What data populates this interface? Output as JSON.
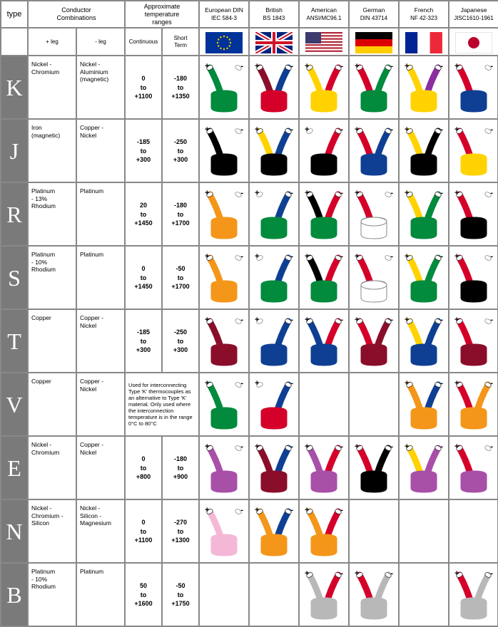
{
  "columns": {
    "type": "type",
    "conductor_header": "Conductor\nCombinations",
    "pos_leg": "+ leg",
    "neg_leg": "- leg",
    "temp_header": "Approximate\ntemperature\nranges",
    "continuous": "Continuous",
    "short_term": "Short\nTerm",
    "standards": [
      {
        "name": "European DIN",
        "code": "IEC 584-3",
        "flag": "eu"
      },
      {
        "name": "British",
        "code": "BS 1843",
        "flag": "uk"
      },
      {
        "name": "American",
        "code": "ANSI/MC96.1",
        "flag": "us"
      },
      {
        "name": "German",
        "code": "DIN 43714",
        "flag": "de"
      },
      {
        "name": "French",
        "code": "NF 42-323",
        "flag": "fr"
      },
      {
        "name": "Japanese",
        "code": "JISC1610-1961",
        "flag": "jp"
      }
    ]
  },
  "colors": {
    "type_bg": "#7a7a7a",
    "green": "#028a3d",
    "red": "#d4002a",
    "orange": "#f49619",
    "blue": "#0f3f93",
    "darkblue": "#0a1e5a",
    "black": "#000000",
    "white": "#ffffff",
    "yellow": "#ffd200",
    "brown": "#6b1a16",
    "maroon": "#8a0e2a",
    "purple": "#8a2fa0",
    "violet": "#a84fa8",
    "pink": "#f4b8d6",
    "grey": "#b8b8b8"
  },
  "rows": [
    {
      "type": "K",
      "pos": "Nickel -\nChromium",
      "neg": "Nickel -\nAluminium\n(magnetic)",
      "cont": [
        "0",
        "to",
        "+1100"
      ],
      "short": [
        "-180",
        "to",
        "+1350"
      ],
      "std": [
        {
          "sheath": "green",
          "pos": "green",
          "neg": "white"
        },
        {
          "sheath": "red",
          "pos": "maroon",
          "neg": "blue"
        },
        {
          "sheath": "yellow",
          "pos": "yellow",
          "neg": "red"
        },
        {
          "sheath": "green",
          "pos": "red",
          "neg": "green"
        },
        {
          "sheath": "yellow",
          "pos": "yellow",
          "neg": "purple"
        },
        {
          "sheath": "blue",
          "pos": "red",
          "neg": "white"
        }
      ]
    },
    {
      "type": "J",
      "pos": "Iron\n(magnetic)",
      "neg": "Copper -\nNickel",
      "cont": [
        "-185",
        "to",
        "+300"
      ],
      "short": [
        "-250",
        "to",
        "+300"
      ],
      "std": [
        {
          "sheath": "black",
          "pos": "black",
          "neg": "white"
        },
        {
          "sheath": "black",
          "pos": "yellow",
          "neg": "blue"
        },
        {
          "sheath": "black",
          "pos": "white",
          "neg": "red"
        },
        {
          "sheath": "blue",
          "pos": "red",
          "neg": "blue"
        },
        {
          "sheath": "black",
          "pos": "yellow",
          "neg": "black"
        },
        {
          "sheath": "yellow",
          "pos": "red",
          "neg": "white"
        }
      ]
    },
    {
      "type": "R",
      "pos": "Platinum\n- 13%\nRhodium",
      "neg": "Platinum",
      "cont": [
        "20",
        "to",
        "+1450"
      ],
      "short": [
        "-180",
        "to",
        "+1700"
      ],
      "std": [
        {
          "sheath": "orange",
          "pos": "orange",
          "neg": "white"
        },
        {
          "sheath": "green",
          "pos": "white",
          "neg": "blue"
        },
        {
          "sheath": "green",
          "pos": "black",
          "neg": "red"
        },
        {
          "sheath": "white",
          "pos": "red",
          "neg": "white"
        },
        {
          "sheath": "green",
          "pos": "yellow",
          "neg": "green"
        },
        {
          "sheath": "black",
          "pos": "red",
          "neg": "white"
        }
      ]
    },
    {
      "type": "S",
      "pos": "Platinum\n- 10%\nRhodium",
      "neg": "Platinum",
      "cont": [
        "0",
        "to",
        "+1450"
      ],
      "short": [
        "-50",
        "to",
        "+1700"
      ],
      "std": [
        {
          "sheath": "orange",
          "pos": "orange",
          "neg": "white"
        },
        {
          "sheath": "green",
          "pos": "white",
          "neg": "blue"
        },
        {
          "sheath": "green",
          "pos": "black",
          "neg": "red"
        },
        {
          "sheath": "white",
          "pos": "red",
          "neg": "white"
        },
        {
          "sheath": "green",
          "pos": "yellow",
          "neg": "green"
        },
        {
          "sheath": "black",
          "pos": "red",
          "neg": "white"
        }
      ]
    },
    {
      "type": "T",
      "pos": "Copper",
      "neg": "Copper -\nNickel",
      "cont": [
        "-185",
        "to",
        "+300"
      ],
      "short": [
        "-250",
        "to",
        "+300"
      ],
      "std": [
        {
          "sheath": "maroon",
          "pos": "maroon",
          "neg": "white"
        },
        {
          "sheath": "blue",
          "pos": "white",
          "neg": "blue"
        },
        {
          "sheath": "blue",
          "pos": "blue",
          "neg": "red"
        },
        {
          "sheath": "maroon",
          "pos": "red",
          "neg": "maroon"
        },
        {
          "sheath": "blue",
          "pos": "yellow",
          "neg": "blue"
        },
        {
          "sheath": "maroon",
          "pos": "red",
          "neg": "white"
        }
      ]
    },
    {
      "type": "V",
      "pos": "Copper",
      "neg": "Copper -\nNickel",
      "note": "Used for interconnecting Type 'K' thermocouples as an alternative to Type 'K' material. Only used where the interconnection temperature is in the range 0°C to 80°C",
      "std": [
        {
          "sheath": "green",
          "pos": "green",
          "neg": "white"
        },
        {
          "sheath": "red",
          "pos": "white",
          "neg": "blue"
        },
        null,
        null,
        {
          "sheath": "orange",
          "pos": "orange",
          "neg": "blue"
        },
        {
          "sheath": "orange",
          "pos": "red",
          "neg": "orange"
        }
      ]
    },
    {
      "type": "E",
      "pos": "Nickel -\nChromium",
      "neg": "Copper -\nNickel",
      "cont": [
        "0",
        "to",
        "+800"
      ],
      "short": [
        "-180",
        "to",
        "+900"
      ],
      "std": [
        {
          "sheath": "violet",
          "pos": "violet",
          "neg": "white"
        },
        {
          "sheath": "maroon",
          "pos": "maroon",
          "neg": "blue"
        },
        {
          "sheath": "violet",
          "pos": "violet",
          "neg": "red"
        },
        {
          "sheath": "black",
          "pos": "red",
          "neg": "black"
        },
        {
          "sheath": "violet",
          "pos": "yellow",
          "neg": "violet"
        },
        {
          "sheath": "violet",
          "pos": "red",
          "neg": "white"
        }
      ]
    },
    {
      "type": "N",
      "pos": "Nickel -\nChromium -\nSilicon",
      "neg": "Nickel -\nSilicon -\nMagnesium",
      "cont": [
        "0",
        "to",
        "+1100"
      ],
      "short": [
        "-270",
        "to",
        "+1300"
      ],
      "std": [
        {
          "sheath": "pink",
          "pos": "pink",
          "neg": "white"
        },
        {
          "sheath": "orange",
          "pos": "orange",
          "neg": "blue"
        },
        {
          "sheath": "orange",
          "pos": "orange",
          "neg": "red"
        },
        null,
        null,
        null
      ]
    },
    {
      "type": "B",
      "pos": "Platinum\n- 10%\nRhodium",
      "neg": "Platinum",
      "cont": [
        "50",
        "to",
        "+1600"
      ],
      "short": [
        "-50",
        "to",
        "+1750"
      ],
      "std": [
        null,
        null,
        {
          "sheath": "grey",
          "pos": "grey",
          "neg": "red"
        },
        {
          "sheath": "grey",
          "pos": "red",
          "neg": "grey"
        },
        null,
        {
          "sheath": "grey",
          "pos": "red",
          "neg": "grey"
        }
      ]
    }
  ]
}
